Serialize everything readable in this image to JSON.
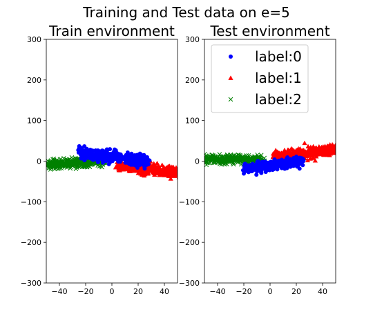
{
  "figure": {
    "title": "Training and Test data on e=5"
  },
  "chart_data": [
    {
      "type": "scatter",
      "title": "Train environment",
      "xlim": [
        -50,
        50
      ],
      "ylim": [
        -300,
        300
      ],
      "xticks": [
        -40,
        -20,
        0,
        20,
        40
      ],
      "yticks": [
        -300,
        -200,
        -100,
        0,
        100,
        200,
        300
      ],
      "xtick_labels": [
        "−40",
        "−20",
        "0",
        "20",
        "40"
      ],
      "ytick_labels": [
        "−300",
        "−200",
        "−100",
        "0",
        "100",
        "200",
        "300"
      ],
      "legend": false,
      "series": [
        {
          "name": "label:0",
          "color": "#0000ff",
          "marker": "circle",
          "x_range": [
            -25,
            28
          ],
          "y_center_at_x": [
            [
              -25,
              20
            ],
            [
              28,
              0
            ]
          ],
          "y_spread": 12,
          "count": 380
        },
        {
          "name": "label:1",
          "color": "#ff0000",
          "marker": "triangle",
          "x_range": [
            5,
            50
          ],
          "y_center_at_x": [
            [
              5,
              -10
            ],
            [
              50,
              -28
            ]
          ],
          "y_spread": 11,
          "count": 380
        },
        {
          "name": "label:2",
          "color": "#008000",
          "marker": "x",
          "x_range": [
            -50,
            -5
          ],
          "y_center_at_x": [
            [
              -50,
              -8
            ],
            [
              -5,
              0
            ]
          ],
          "y_spread": 9,
          "count": 380
        }
      ]
    },
    {
      "type": "scatter",
      "title": "Test environment",
      "xlim": [
        -50,
        50
      ],
      "ylim": [
        -300,
        300
      ],
      "xticks": [
        -40,
        -20,
        0,
        20,
        40
      ],
      "yticks": [
        -300,
        -200,
        -100,
        0,
        100,
        200,
        300
      ],
      "xtick_labels": [
        "−40",
        "−20",
        "0",
        "20",
        "40"
      ],
      "ytick_labels": [
        "−300",
        "−200",
        "−100",
        "0",
        "100",
        "200",
        "300"
      ],
      "legend": true,
      "legend_position": "top-right",
      "series": [
        {
          "name": "label:0",
          "color": "#0000ff",
          "marker": "circle",
          "x_range": [
            -20,
            25
          ],
          "y_center_at_x": [
            [
              -20,
              -20
            ],
            [
              25,
              0
            ]
          ],
          "y_spread": 10,
          "count": 380
        },
        {
          "name": "label:1",
          "color": "#ff0000",
          "marker": "triangle",
          "x_range": [
            3,
            50
          ],
          "y_center_at_x": [
            [
              3,
              12
            ],
            [
              50,
              28
            ]
          ],
          "y_spread": 11,
          "count": 380
        },
        {
          "name": "label:2",
          "color": "#008000",
          "marker": "x",
          "x_range": [
            -50,
            -5
          ],
          "y_center_at_x": [
            [
              -50,
              5
            ],
            [
              -5,
              3
            ]
          ],
          "y_spread": 9,
          "count": 380
        }
      ]
    }
  ]
}
